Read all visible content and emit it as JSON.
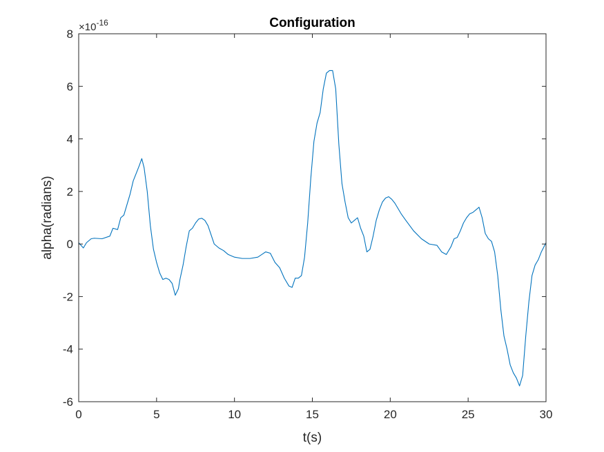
{
  "chart_data": {
    "type": "line",
    "title": "Configuration",
    "xlabel": "t(s)",
    "ylabel": "alpha(radians)",
    "y_exponent_base": "×10",
    "y_exponent_power": "-16",
    "xlim": [
      0,
      30
    ],
    "ylim": [
      -6,
      8
    ],
    "xticks": [
      0,
      5,
      10,
      15,
      20,
      25,
      30
    ],
    "yticks": [
      -6,
      -4,
      -2,
      0,
      2,
      4,
      6,
      8
    ],
    "grid": false,
    "line_color": "#0072BD",
    "axis_color": "#262626",
    "series": [
      {
        "x": [
          0,
          0.3,
          0.5,
          0.8,
          1.0,
          1.5,
          2.0,
          2.2,
          2.5,
          2.7,
          2.9,
          3.1,
          3.3,
          3.5,
          3.7,
          3.9,
          4.05,
          4.2,
          4.4,
          4.6,
          4.8,
          5.0,
          5.2,
          5.4,
          5.6,
          5.8,
          6.0,
          6.2,
          6.4,
          6.5,
          6.7,
          6.9,
          7.1,
          7.3,
          7.5,
          7.7,
          7.9,
          8.1,
          8.3,
          8.5,
          8.7,
          9.0,
          9.3,
          9.6,
          10.0,
          10.5,
          11.0,
          11.5,
          12.0,
          12.3,
          12.6,
          12.9,
          13.2,
          13.5,
          13.7,
          13.9,
          14.1,
          14.3,
          14.5,
          14.7,
          14.9,
          15.1,
          15.3,
          15.5,
          15.7,
          15.9,
          16.1,
          16.3,
          16.5,
          16.7,
          16.9,
          17.1,
          17.3,
          17.5,
          17.7,
          17.9,
          18.1,
          18.3,
          18.5,
          18.7,
          18.9,
          19.1,
          19.3,
          19.5,
          19.7,
          19.9,
          20.1,
          20.3,
          20.5,
          20.7,
          21.0,
          21.5,
          22.0,
          22.5,
          23.0,
          23.3,
          23.6,
          23.9,
          24.1,
          24.3,
          24.5,
          24.7,
          24.9,
          25.1,
          25.3,
          25.5,
          25.7,
          25.9,
          26.1,
          26.3,
          26.5,
          26.7,
          26.9,
          27.1,
          27.3,
          27.5,
          27.7,
          27.9,
          28.1,
          28.3,
          28.5,
          28.7,
          28.9,
          29.1,
          29.3,
          29.5,
          29.7,
          30.0
        ],
        "y": [
          0.05,
          -0.15,
          0.05,
          0.2,
          0.22,
          0.2,
          0.3,
          0.6,
          0.55,
          1.0,
          1.1,
          1.5,
          1.9,
          2.4,
          2.7,
          3.0,
          3.25,
          2.9,
          2.0,
          0.7,
          -0.2,
          -0.7,
          -1.1,
          -1.35,
          -1.3,
          -1.35,
          -1.5,
          -1.95,
          -1.7,
          -1.35,
          -0.8,
          -0.1,
          0.5,
          0.6,
          0.8,
          0.95,
          0.98,
          0.9,
          0.7,
          0.35,
          0.0,
          -0.15,
          -0.25,
          -0.4,
          -0.5,
          -0.55,
          -0.55,
          -0.5,
          -0.3,
          -0.35,
          -0.7,
          -0.9,
          -1.3,
          -1.6,
          -1.65,
          -1.3,
          -1.3,
          -1.2,
          -0.5,
          0.8,
          2.5,
          3.9,
          4.6,
          5.0,
          5.9,
          6.5,
          6.6,
          6.6,
          5.9,
          3.8,
          2.3,
          1.6,
          1.0,
          0.8,
          0.9,
          1.0,
          0.6,
          0.3,
          -0.3,
          -0.2,
          0.3,
          0.9,
          1.3,
          1.6,
          1.75,
          1.8,
          1.7,
          1.55,
          1.35,
          1.15,
          0.9,
          0.5,
          0.2,
          0.0,
          -0.05,
          -0.3,
          -0.4,
          -0.1,
          0.2,
          0.25,
          0.5,
          0.8,
          1.0,
          1.15,
          1.2,
          1.3,
          1.4,
          1.0,
          0.4,
          0.2,
          0.1,
          -0.3,
          -1.2,
          -2.5,
          -3.5,
          -4.0,
          -4.6,
          -4.9,
          -5.1,
          -5.4,
          -5.0,
          -3.5,
          -2.2,
          -1.2,
          -0.8,
          -0.6,
          -0.3,
          0.05
        ]
      }
    ]
  }
}
